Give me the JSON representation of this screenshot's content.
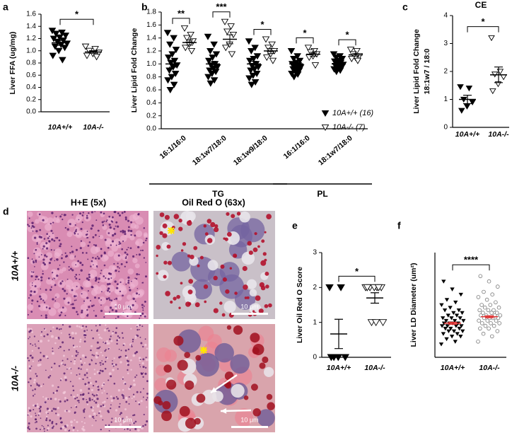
{
  "panel_labels": [
    "a",
    "b",
    "c",
    "d",
    "e",
    "f"
  ],
  "chart_data": [
    {
      "type": "dot",
      "ylabel": "Liver FFA (ug/mg)",
      "ylim": [
        0,
        1.6
      ],
      "yticks": [
        {
          "value": 0,
          "label": "0.0"
        },
        0.2,
        0.4,
        0.6,
        0.8,
        {
          "value": 1,
          "label": "1.0"
        },
        1.2,
        1.4,
        1.6
      ],
      "categories": [
        "10A+/+",
        "10A-/-"
      ],
      "groups": [
        {
          "marker": "triangle-down",
          "color": "#000000",
          "values": [
            1.33,
            1.3,
            1.28,
            1.25,
            1.22,
            1.2,
            1.17,
            1.15,
            1.12,
            1.1,
            1.07,
            1.05,
            1.0,
            0.92,
            0.85
          ],
          "mean": 1.13,
          "error": 0.04
        },
        {
          "marker": "open-triangle-down",
          "color": "#000000",
          "values": [
            1.07,
            1.03,
            1.0,
            0.97,
            0.95,
            0.92,
            0.9
          ],
          "mean": 0.98,
          "error": 0.02
        }
      ],
      "mean_color": "#000000",
      "significance": "*"
    },
    {
      "type": "grouped_dot",
      "ylabel": "Liver Lipid Fold Change",
      "ylim": [
        0,
        1.8
      ],
      "yticks": [
        {
          "value": 0,
          "label": "0.0"
        },
        0.2,
        0.4,
        0.6,
        0.8,
        {
          "value": 1,
          "label": "1.0"
        },
        1.2,
        1.4,
        1.6,
        1.8
      ],
      "categories": [
        "16:1/16:0",
        "18:1w7/18:0",
        "18:1w9/18:0",
        "16:1/16:0",
        "18:1w7/18:0"
      ],
      "category_groups": [
        {
          "label": "TG",
          "categories": [
            0,
            1,
            2
          ]
        },
        {
          "label": "PL",
          "categories": [
            3,
            4
          ]
        }
      ],
      "series": [
        {
          "name": "10A+/+ (16)",
          "marker": "triangle-down",
          "color": "#000000",
          "values": [
            [
              1.48,
              1.4,
              1.3,
              1.22,
              1.15,
              1.1,
              1.05,
              1.02,
              0.98,
              0.95,
              0.9,
              0.85,
              0.8,
              0.75,
              0.68,
              0.6
            ],
            [
              1.42,
              1.3,
              1.2,
              1.15,
              1.1,
              1.05,
              1.0,
              0.98,
              0.95,
              0.93,
              0.9,
              0.88,
              0.85,
              0.8,
              0.75,
              0.7
            ],
            [
              1.35,
              1.25,
              1.2,
              1.12,
              1.08,
              1.05,
              1.0,
              0.97,
              0.95,
              0.92,
              0.9,
              0.85,
              0.82,
              0.78,
              0.72,
              0.68
            ],
            [
              1.2,
              1.12,
              1.08,
              1.05,
              1.02,
              1.0,
              0.98,
              0.96,
              0.95,
              0.93,
              0.92,
              0.9,
              0.88,
              0.85,
              0.84,
              0.8
            ],
            [
              1.15,
              1.12,
              1.1,
              1.08,
              1.05,
              1.04,
              1.02,
              1.0,
              0.99,
              0.98,
              0.97,
              0.95,
              0.93,
              0.92,
              0.9,
              0.88
            ]
          ],
          "means": [
            1.0,
            1.0,
            1.0,
            1.0,
            1.0
          ],
          "errors": [
            0.05,
            0.04,
            0.04,
            0.02,
            0.02
          ]
        },
        {
          "name": "10A-/- (7)",
          "marker": "open-triangle-down",
          "color": "#000000",
          "values": [
            [
              1.55,
              1.45,
              1.4,
              1.35,
              1.3,
              1.25,
              1.2
            ],
            [
              1.65,
              1.58,
              1.5,
              1.45,
              1.3,
              1.25,
              1.15
            ],
            [
              1.38,
              1.3,
              1.25,
              1.2,
              1.15,
              1.1,
              1.05
            ],
            [
              1.25,
              1.2,
              1.18,
              1.15,
              1.12,
              1.1,
              0.98
            ],
            [
              1.22,
              1.2,
              1.15,
              1.12,
              1.1,
              1.08,
              1.05
            ]
          ],
          "means": [
            1.33,
            1.38,
            1.2,
            1.15,
            1.14
          ],
          "errors": [
            0.04,
            0.07,
            0.04,
            0.03,
            0.02
          ]
        }
      ],
      "mean_color": "#000000",
      "significance": [
        "**",
        "***",
        "*",
        "*",
        "*"
      ],
      "legend": "lower right"
    },
    {
      "type": "dot",
      "title": "CE",
      "ylabel": [
        "Liver Lipid Fold Change",
        "18:1w7 / 18:0"
      ],
      "ylim": [
        0,
        4
      ],
      "yticks": [
        0,
        1,
        2,
        3,
        4
      ],
      "categories": [
        "10A+/+",
        "10A-/-"
      ],
      "groups": [
        {
          "marker": "triangle-down",
          "color": "#000000",
          "values": [
            1.45,
            1.4,
            1.0,
            0.9,
            0.75,
            0.6
          ],
          "mean": 1.0,
          "error": 0.15
        },
        {
          "marker": "open-triangle-down",
          "color": "#000000",
          "values": [
            3.2,
            2.0,
            1.9,
            1.8,
            1.55,
            1.3
          ],
          "mean": 1.88,
          "error": 0.28
        }
      ],
      "mean_color": "#000000",
      "significance": "*"
    },
    {
      "type": "dot",
      "ylabel": "Liver Oil Red O Score",
      "ylim": [
        0,
        3
      ],
      "yticks": [
        0,
        1,
        2,
        3
      ],
      "categories": [
        "10A+/+",
        "10A-/-"
      ],
      "groups": [
        {
          "marker": "triangle-down",
          "color": "#000000",
          "values": [
            2,
            2,
            0,
            0,
            0,
            0
          ],
          "mean": 0.67,
          "error": 0.42
        },
        {
          "marker": "open-triangle-down",
          "color": "#000000",
          "values": [
            2,
            2,
            2,
            2,
            2,
            2,
            2,
            1,
            1,
            1
          ],
          "mean": 1.7,
          "error": 0.15
        }
      ],
      "mean_color": "#000000",
      "significance": "*"
    },
    {
      "type": "dot",
      "ylabel": "Liver LD Diameter (um²)",
      "ylim": [
        0,
        0.4
      ],
      "categories": [
        "10A+/+",
        "10A-/-"
      ],
      "groups": [
        {
          "marker": "triangle-down",
          "color": "#000000",
          "values": [
            0.05,
            0.06,
            0.07,
            0.08,
            0.08,
            0.09,
            0.09,
            0.1,
            0.1,
            0.1,
            0.11,
            0.11,
            0.11,
            0.12,
            0.12,
            0.12,
            0.12,
            0.13,
            0.13,
            0.13,
            0.13,
            0.14,
            0.14,
            0.14,
            0.15,
            0.15,
            0.15,
            0.16,
            0.16,
            0.17,
            0.17,
            0.18,
            0.18,
            0.19,
            0.2,
            0.21,
            0.22,
            0.24,
            0.26,
            0.29
          ],
          "mean": 0.13,
          "error": 0.004
        },
        {
          "marker": "open-circle",
          "color": "#777777",
          "values": [
            0.06,
            0.08,
            0.09,
            0.1,
            0.11,
            0.11,
            0.12,
            0.12,
            0.13,
            0.13,
            0.13,
            0.14,
            0.14,
            0.14,
            0.15,
            0.15,
            0.15,
            0.15,
            0.16,
            0.16,
            0.16,
            0.16,
            0.17,
            0.17,
            0.17,
            0.18,
            0.18,
            0.18,
            0.19,
            0.19,
            0.2,
            0.2,
            0.21,
            0.22,
            0.23,
            0.24,
            0.25,
            0.27,
            0.29,
            0.31
          ],
          "mean": 0.155,
          "error": 0.004
        }
      ],
      "mean_color": "#e03030",
      "significance": "****"
    }
  ],
  "micrographs": {
    "columns": [
      "H+E (5x)",
      "Oil Red O (63x)"
    ],
    "rows": [
      "10A+/+",
      "10A-/-"
    ],
    "scale_bar": "10 μm"
  }
}
